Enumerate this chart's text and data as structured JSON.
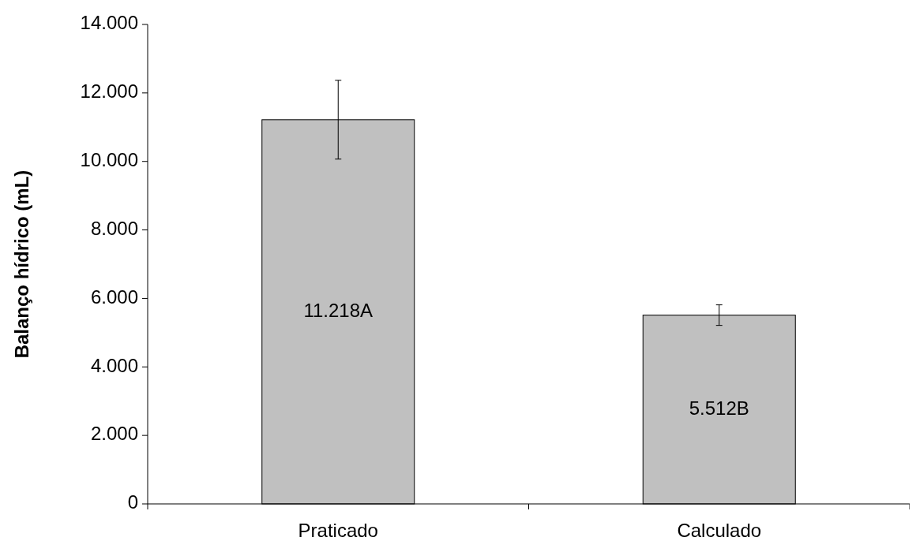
{
  "chart_data": {
    "type": "bar",
    "ylabel": "Balanço hídrico (mL)",
    "categories": [
      "Praticado",
      "Calculado"
    ],
    "values": [
      11218,
      5512
    ],
    "errors": [
      1150,
      300
    ],
    "value_labels": [
      "11.218A",
      "5.512B"
    ],
    "color": "#c0c0c0",
    "ylim": [
      0,
      14000
    ],
    "yticks": [
      0,
      {
        "value": 2000,
        "label": "2.000"
      },
      {
        "value": 4000,
        "label": "4.000"
      },
      {
        "value": 6000,
        "label": "6.000"
      },
      {
        "value": 8000,
        "label": "8.000"
      },
      {
        "value": 10000,
        "label": "10.000"
      },
      {
        "value": 12000,
        "label": "12.000"
      },
      {
        "value": 14000,
        "label": "14.000"
      }
    ],
    "grid": false
  }
}
